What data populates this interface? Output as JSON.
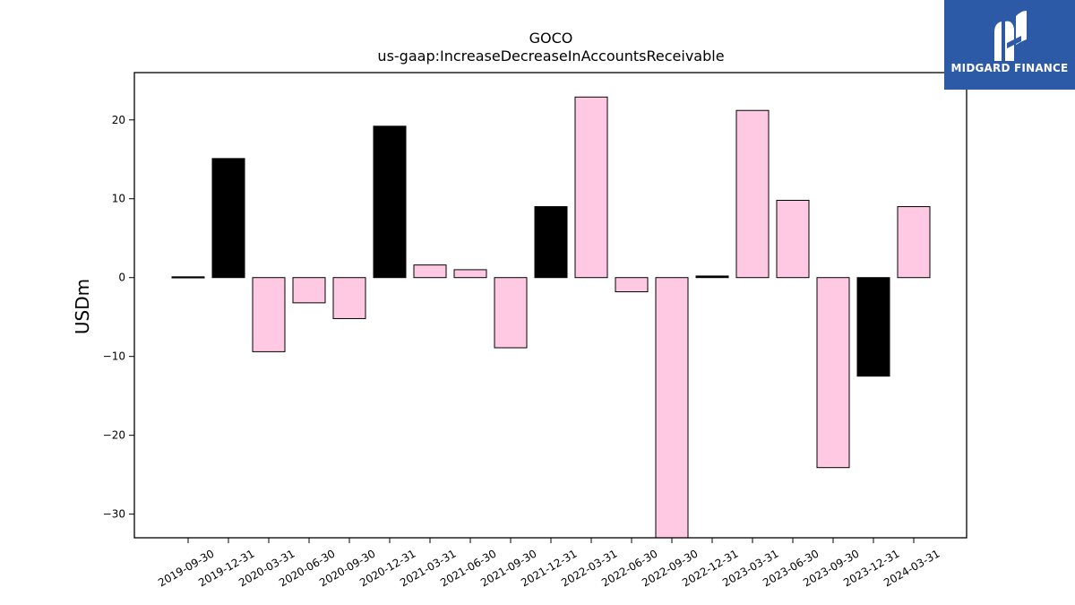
{
  "chart_data": {
    "type": "bar",
    "title": "GOCO",
    "subtitle": "us-gaap:IncreaseDecreaseInAccountsReceivable",
    "xlabel": "",
    "ylabel": "USDm",
    "ylim": [
      -33,
      26
    ],
    "yticks": [
      -30,
      -20,
      -10,
      0,
      10,
      20
    ],
    "categories": [
      "2019-09-30",
      "2019-12-31",
      "2020-03-31",
      "2020-06-30",
      "2020-09-30",
      "2020-12-31",
      "2021-03-31",
      "2021-06-30",
      "2021-09-30",
      "2021-12-31",
      "2022-03-31",
      "2022-06-30",
      "2022-09-30",
      "2022-12-31",
      "2023-03-31",
      "2023-06-30",
      "2023-09-30",
      "2023-12-31",
      "2024-03-31"
    ],
    "values": [
      0.1,
      15.1,
      -9.4,
      -3.2,
      -5.2,
      19.2,
      1.6,
      1.0,
      -8.9,
      9.0,
      22.9,
      -1.8,
      -33.0,
      0.2,
      21.2,
      9.8,
      -24.1,
      -12.5,
      9.0
    ],
    "bar_colors": [
      "#000000",
      "#000000",
      "#ffc9e3",
      "#ffc9e3",
      "#ffc9e3",
      "#000000",
      "#ffc9e3",
      "#ffc9e3",
      "#ffc9e3",
      "#000000",
      "#ffc9e3",
      "#ffc9e3",
      "#ffc9e3",
      "#000000",
      "#ffc9e3",
      "#ffc9e3",
      "#ffc9e3",
      "#000000",
      "#ffc9e3"
    ],
    "grid": false
  },
  "logo": {
    "text": "MIDGARD FINANCE",
    "background": "#2d5aa6"
  }
}
